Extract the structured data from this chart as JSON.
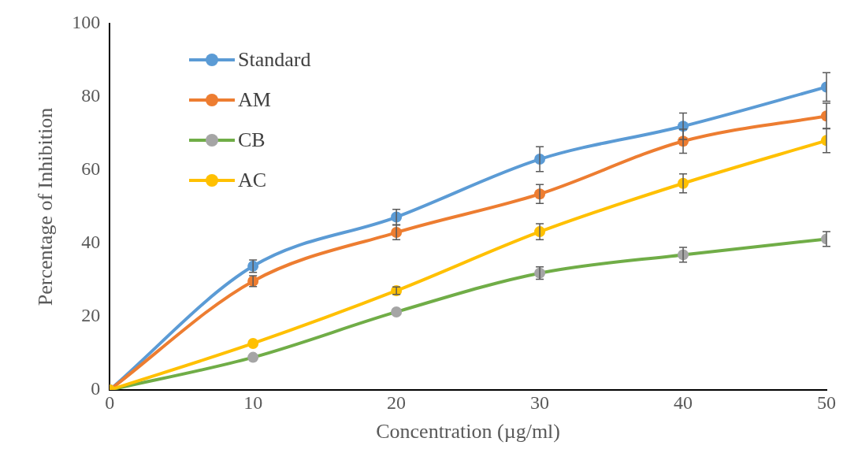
{
  "chart_data": {
    "type": "line",
    "xlabel": "Concentration (µg/ml)",
    "ylabel": "Percentage of Inhibition",
    "x": [
      0,
      10,
      20,
      30,
      40,
      50
    ],
    "xlim": [
      0,
      50
    ],
    "xticks": [
      0,
      10,
      20,
      30,
      40,
      50
    ],
    "ylim": [
      0,
      100
    ],
    "yticks": [
      0,
      20,
      40,
      60,
      80,
      100
    ],
    "grid": false,
    "legend": "top left",
    "marker": "circle",
    "line_style": "solid",
    "series": [
      {
        "name": "Standard",
        "color": "#5b9bd5",
        "values": [
          0,
          33.8,
          47.2,
          63,
          72,
          82.7
        ],
        "errors": [
          null,
          1.7,
          2.1,
          3.4,
          3.6,
          3.9
        ]
      },
      {
        "name": "AM",
        "color": "#ed7d31",
        "values": [
          0,
          29.7,
          43,
          53.5,
          67.9,
          74.8
        ],
        "errors": [
          null,
          1.5,
          2,
          2.6,
          3.3,
          3.5
        ]
      },
      {
        "name": "CB",
        "color": "#70ad47",
        "colors": [
          "#a5a5a5",
          "#a5a5a5",
          "#a5a5a5",
          "#a5a5a5",
          "#a5a5a5",
          "#a5a5a5"
        ],
        "values": [
          0,
          8.9,
          21.3,
          31.9,
          36.9,
          41.2
        ],
        "errors": [
          null,
          null,
          null,
          1.7,
          2,
          2
        ]
      },
      {
        "name": "AC",
        "color": "#ffc000",
        "values": [
          0,
          12.7,
          27.1,
          43.2,
          56.4,
          68.1
        ],
        "errors": [
          null,
          null,
          1,
          2.2,
          2.6,
          3.3
        ]
      }
    ]
  }
}
